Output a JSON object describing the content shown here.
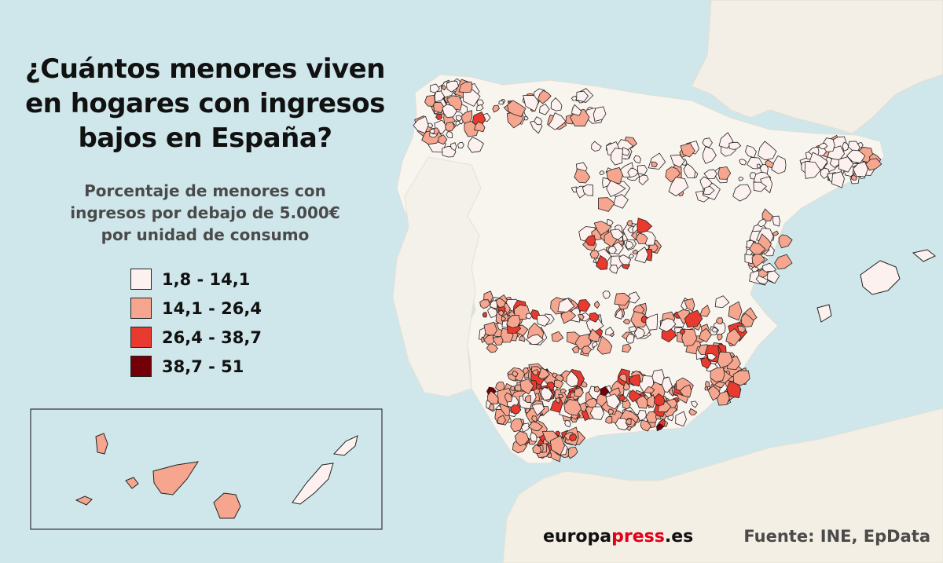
{
  "title": {
    "lines": [
      "¿Cuántos menores viven",
      "en hogares con ingresos",
      "bajos en España?"
    ]
  },
  "subtitle": {
    "lines": [
      "Porcentaje de menores con",
      "ingresos por debajo de 5.000€",
      "por unidad de consumo"
    ]
  },
  "legend": [
    {
      "label": "1,8 - 14,1",
      "color": "#fcf1ee"
    },
    {
      "label": "14,1 - 26,4",
      "color": "#f6a58e"
    },
    {
      "label": "26,4 - 38,7",
      "color": "#e83a2f"
    },
    {
      "label": "38,7 - 51",
      "color": "#730008"
    }
  ],
  "colors": {
    "sea": "#cfe7ea",
    "land": "#f7f4ee",
    "africa": "#f4efe4",
    "municipality_border": "#222222"
  },
  "footer": {
    "brand_main": "europa",
    "brand_accent": "press",
    "brand_suffix": ".es",
    "source": "Fuente: INE, EpData"
  }
}
